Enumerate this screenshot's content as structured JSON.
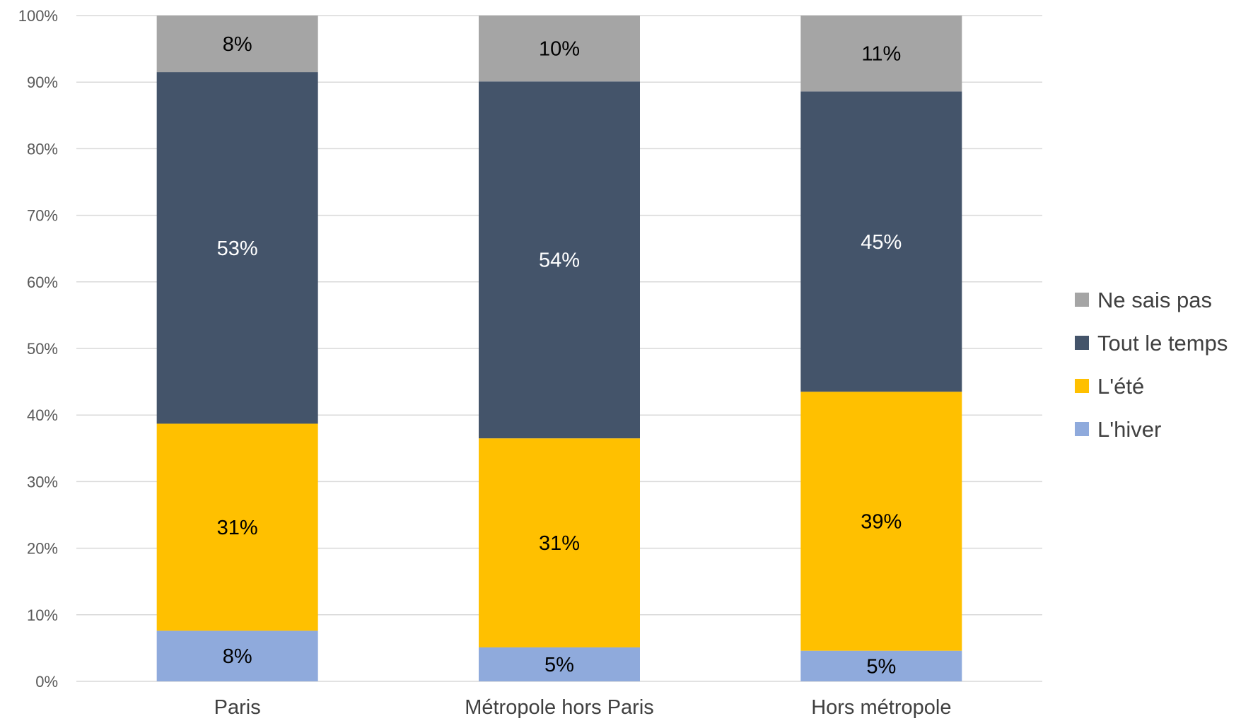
{
  "chart_data": {
    "type": "bar",
    "stacked": true,
    "percent_stacked": true,
    "categories": [
      "Paris",
      "Métropole hors Paris",
      "Hors métropole"
    ],
    "series": [
      {
        "name": "L'hiver",
        "values": [
          7.6,
          5.1,
          4.6
        ],
        "labels": [
          "8%",
          "5%",
          "5%"
        ],
        "color": "#8faadc",
        "label_color": "#000000"
      },
      {
        "name": "L'été",
        "values": [
          31.1,
          31.4,
          38.9
        ],
        "labels": [
          "31%",
          "31%",
          "39%"
        ],
        "color": "#ffc000",
        "label_color": "#000000"
      },
      {
        "name": "Tout le temps",
        "values": [
          52.8,
          53.6,
          45.1
        ],
        "labels": [
          "53%",
          "54%",
          "45%"
        ],
        "color": "#44546a",
        "label_color": "#ffffff"
      },
      {
        "name": "Ne sais pas",
        "values": [
          8.5,
          9.9,
          11.4
        ],
        "labels": [
          "8%",
          "10%",
          "11%"
        ],
        "color": "#a5a5a5",
        "label_color": "#000000"
      }
    ],
    "y_ticks": [
      "0%",
      "10%",
      "20%",
      "30%",
      "40%",
      "50%",
      "60%",
      "70%",
      "80%",
      "90%",
      "100%"
    ],
    "ylim": [
      0,
      100
    ],
    "legend_order": [
      "Ne sais pas",
      "Tout le temps",
      "L'été",
      "L'hiver"
    ],
    "legend_position": "right",
    "grid": true,
    "title": "",
    "xlabel": "",
    "ylabel": ""
  }
}
